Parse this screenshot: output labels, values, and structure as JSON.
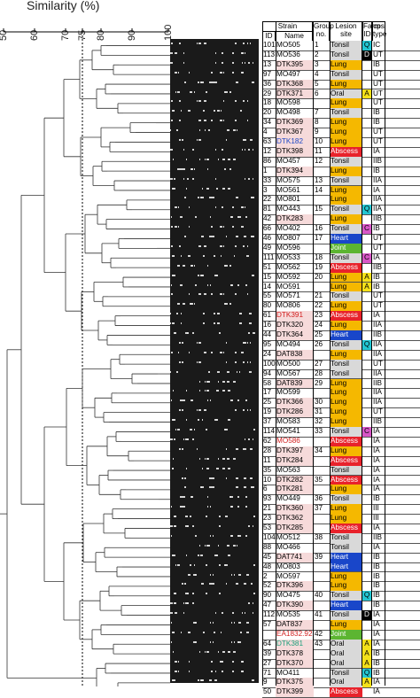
{
  "axis": {
    "title": "Similarity (%)",
    "ticks": [
      "50",
      "60",
      "70",
      "75",
      "80",
      "90",
      "100"
    ]
  },
  "table_header": {
    "strain": "Strain",
    "id": "ID",
    "name": "Name",
    "group": "Group no.",
    "lesion": "Lesion site",
    "farm": "Farm ID",
    "cps": "cps type"
  },
  "colors": {
    "lung": "#f5b800",
    "tonsil": "#d9d9d9",
    "abscess": "#e8222b",
    "heart": "#1946c9",
    "joint": "#5cb531",
    "oral": "#d9d9d9",
    "farmA": "#f4e11a",
    "farmQ": "#23c6d2",
    "farmC": "#d756c6",
    "farmD": "#000000"
  },
  "rows": [
    {
      "id": "101",
      "name": "MO505",
      "group": "1",
      "site": "Tonsil",
      "farm": "Q",
      "cps": "IC"
    },
    {
      "id": "113",
      "name": "MO536",
      "group": "2",
      "site": "Tonsil",
      "farm": "D",
      "cps": "UT"
    },
    {
      "id": "13",
      "name": "DTK395",
      "group": "3",
      "site": "Lung",
      "farm": "",
      "cps": "IB"
    },
    {
      "id": "97",
      "name": "MO497",
      "group": "4",
      "site": "Tonsil",
      "farm": "",
      "cps": "UT"
    },
    {
      "id": "36",
      "name": "DTK368",
      "group": "5",
      "site": "Lung",
      "farm": "",
      "cps": "UT"
    },
    {
      "id": "29",
      "name": "DTK371",
      "group": "6",
      "site": "Oral",
      "farm": "A",
      "cps": "UT"
    },
    {
      "id": "18",
      "name": "MO598",
      "group": "",
      "site": "Lung",
      "farm": "",
      "cps": "UT"
    },
    {
      "id": "20",
      "name": "MO498",
      "group": "7",
      "site": "Tonsil",
      "farm": "",
      "cps": "IB"
    },
    {
      "id": "34",
      "name": "DTK369",
      "group": "8",
      "site": "Lung",
      "farm": "",
      "cps": "IB"
    },
    {
      "id": "4",
      "name": "DTK367",
      "group": "9",
      "site": "Lung",
      "farm": "",
      "cps": "UT"
    },
    {
      "id": "63",
      "name": "DTK182",
      "group": "10",
      "site": "Lung",
      "farm": "",
      "cps": "UT"
    },
    {
      "id": "12",
      "name": "DTK398",
      "group": "11",
      "site": "Abscess",
      "farm": "",
      "cps": "IA"
    },
    {
      "id": "86",
      "name": "MO457",
      "group": "12",
      "site": "Tonsil",
      "farm": "",
      "cps": "IIB"
    },
    {
      "id": "1",
      "name": "DTK394",
      "group": "",
      "site": "Lung",
      "farm": "",
      "cps": "IB"
    },
    {
      "id": "33",
      "name": "MO575",
      "group": "13",
      "site": "Tonsil",
      "farm": "",
      "cps": "IIA"
    },
    {
      "id": "3",
      "name": "MO561",
      "group": "14",
      "site": "Lung",
      "farm": "",
      "cps": "IA"
    },
    {
      "id": "22",
      "name": "MO801",
      "group": "",
      "site": "Lung",
      "farm": "",
      "cps": "IIA"
    },
    {
      "id": "81",
      "name": "MO443",
      "group": "15",
      "site": "Tonsil",
      "farm": "Q",
      "cps": "IIA"
    },
    {
      "id": "42",
      "name": "DTK283",
      "group": "",
      "site": "Lung",
      "farm": "",
      "cps": "IIB"
    },
    {
      "id": "66",
      "name": "MO402",
      "group": "16",
      "site": "Tonsil",
      "farm": "C",
      "cps": "IB"
    },
    {
      "id": "46",
      "name": "MO807",
      "group": "17",
      "site": "Heart",
      "farm": "",
      "cps": "UT"
    },
    {
      "id": "49",
      "name": "MO596",
      "group": "",
      "site": "Joint",
      "farm": "",
      "cps": "UT"
    },
    {
      "id": "111",
      "name": "MO533",
      "group": "18",
      "site": "Tonsil",
      "farm": "C",
      "cps": "IA"
    },
    {
      "id": "51",
      "name": "MO562",
      "group": "19",
      "site": "Abscess",
      "farm": "",
      "cps": "IIB"
    },
    {
      "id": "15",
      "name": "MO592",
      "group": "20",
      "site": "Lung",
      "farm": "A",
      "cps": "IB"
    },
    {
      "id": "14",
      "name": "MO591",
      "group": "",
      "site": "Lung",
      "farm": "A",
      "cps": "IB"
    },
    {
      "id": "55",
      "name": "MO571",
      "group": "21",
      "site": "Tonsil",
      "farm": "",
      "cps": "UT"
    },
    {
      "id": "80",
      "name": "MO806",
      "group": "22",
      "site": "Lung",
      "farm": "",
      "cps": "UT"
    },
    {
      "id": "61",
      "name": "DTK391",
      "group": "23",
      "site": "Abscess",
      "farm": "",
      "cps": "IA"
    },
    {
      "id": "16",
      "name": "DTK320",
      "group": "24",
      "site": "Lung",
      "farm": "",
      "cps": "IIA"
    },
    {
      "id": "44",
      "name": "DTK364",
      "group": "25",
      "site": "Heart",
      "farm": "",
      "cps": "IIB"
    },
    {
      "id": "95",
      "name": "MO494",
      "group": "26",
      "site": "Tonsil",
      "farm": "Q",
      "cps": "IIA"
    },
    {
      "id": "24",
      "name": "DAT838",
      "group": "",
      "site": "Lung",
      "farm": "",
      "cps": "IIA"
    },
    {
      "id": "100",
      "name": "MO500",
      "group": "27",
      "site": "Tonsil",
      "farm": "",
      "cps": "UT"
    },
    {
      "id": "94",
      "name": "MO567",
      "group": "28",
      "site": "Tonsil",
      "farm": "",
      "cps": "IIA"
    },
    {
      "id": "58",
      "name": "DAT839",
      "group": "29",
      "site": "Lung",
      "farm": "",
      "cps": "IIB"
    },
    {
      "id": "17",
      "name": "MO599",
      "group": "",
      "site": "Lung",
      "farm": "",
      "cps": "IIA"
    },
    {
      "id": "25",
      "name": "DTK366",
      "group": "30",
      "site": "Lung",
      "farm": "",
      "cps": "IIA"
    },
    {
      "id": "19",
      "name": "DTK286",
      "group": "31",
      "site": "Lung",
      "farm": "",
      "cps": "UT"
    },
    {
      "id": "37",
      "name": "MO583",
      "group": "32",
      "site": "Lung",
      "farm": "",
      "cps": "IIB"
    },
    {
      "id": "114",
      "name": "MO541",
      "group": "33",
      "site": "Tonsil",
      "farm": "C",
      "cps": "IA"
    },
    {
      "id": "62",
      "name": "MO586",
      "group": "",
      "site": "Abscess",
      "farm": "",
      "cps": "IA"
    },
    {
      "id": "28",
      "name": "DTK397",
      "group": "34",
      "site": "Lung",
      "farm": "",
      "cps": "IA"
    },
    {
      "id": "11",
      "name": "DTK284",
      "group": "",
      "site": "Abscess",
      "farm": "",
      "cps": "IA"
    },
    {
      "id": "35",
      "name": "MO563",
      "group": "",
      "site": "Tonsil",
      "farm": "",
      "cps": "IA"
    },
    {
      "id": "10",
      "name": "DTK282",
      "group": "35",
      "site": "Abscess",
      "farm": "",
      "cps": "IA"
    },
    {
      "id": "6",
      "name": "DTK281",
      "group": "",
      "site": "Lung",
      "farm": "",
      "cps": "IA"
    },
    {
      "id": "93",
      "name": "MO449",
      "group": "36",
      "site": "Tonsil",
      "farm": "",
      "cps": "IB"
    },
    {
      "id": "21",
      "name": "DTK360",
      "group": "37",
      "site": "Lung",
      "farm": "",
      "cps": "III"
    },
    {
      "id": "23",
      "name": "DTK362",
      "group": "",
      "site": "Lung",
      "farm": "",
      "cps": "III"
    },
    {
      "id": "53",
      "name": "DTK285",
      "group": "",
      "site": "Abscess",
      "farm": "",
      "cps": "IA"
    },
    {
      "id": "104",
      "name": "MO512",
      "group": "38",
      "site": "Tonsil",
      "farm": "",
      "cps": "IIB"
    },
    {
      "id": "88",
      "name": "MO466",
      "group": "",
      "site": "Tonsil",
      "farm": "",
      "cps": "IA"
    },
    {
      "id": "45",
      "name": "DAT741",
      "group": "39",
      "site": "Heart",
      "farm": "",
      "cps": "IB"
    },
    {
      "id": "48",
      "name": "MO803",
      "group": "",
      "site": "Heart",
      "farm": "",
      "cps": "IB"
    },
    {
      "id": "2",
      "name": "MO597",
      "group": "",
      "site": "Lung",
      "farm": "",
      "cps": "IB"
    },
    {
      "id": "52",
      "name": "DTK396",
      "group": "",
      "site": "Lung",
      "farm": "",
      "cps": "IB"
    },
    {
      "id": "90",
      "name": "MO475",
      "group": "40",
      "site": "Tonsil",
      "farm": "Q",
      "cps": "IB"
    },
    {
      "id": "47",
      "name": "DTK390",
      "group": "",
      "site": "Heart",
      "farm": "",
      "cps": "IB"
    },
    {
      "id": "112",
      "name": "MO535",
      "group": "41",
      "site": "Tonsil",
      "farm": "D",
      "cps": "IA"
    },
    {
      "id": "57",
      "name": "DAT837",
      "group": "",
      "site": "Lung",
      "farm": "",
      "cps": "IA"
    },
    {
      "id": "",
      "name": "EA1832.92",
      "group": "42",
      "site": "Joint",
      "farm": "",
      "cps": "IA"
    },
    {
      "id": "64",
      "name": "DTK381",
      "group": "43",
      "site": "Oral",
      "farm": "A",
      "cps": "IA"
    },
    {
      "id": "39",
      "name": "DTK378",
      "group": "",
      "site": "Oral",
      "farm": "A",
      "cps": "IB"
    },
    {
      "id": "27",
      "name": "DTK370",
      "group": "",
      "site": "Oral",
      "farm": "A",
      "cps": "IB"
    },
    {
      "id": "71",
      "name": "MO411",
      "group": "",
      "site": "Tonsil",
      "farm": "Q",
      "cps": "IB"
    },
    {
      "id": "9",
      "name": "DTK375",
      "group": "",
      "site": "Oral",
      "farm": "A",
      "cps": "IA"
    },
    {
      "id": "50",
      "name": "DTK399",
      "group": "",
      "site": "Abscess",
      "farm": "",
      "cps": "IA"
    }
  ]
}
